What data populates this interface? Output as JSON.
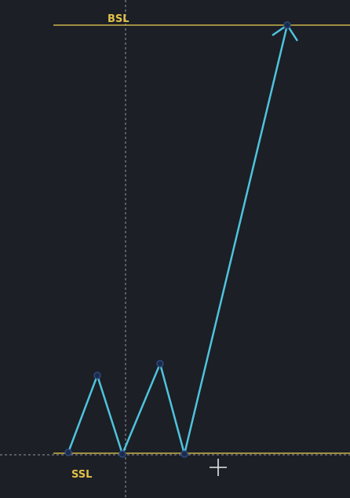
{
  "colors": {
    "background": "#1c1f26",
    "level_line": "#c9b34a",
    "level_text": "#e2c04a",
    "path": "#4fc3dc",
    "point_fill": "#1b2b4d",
    "crosshair": "#bfbfbf"
  },
  "levels": {
    "bsl": {
      "label": "BSL"
    },
    "ssl": {
      "label": "SSL"
    }
  },
  "drawing": {
    "tool": "path-with-arrow",
    "vertices": [
      "low-1",
      "high-1",
      "low-2",
      "high-2",
      "low-3",
      "target-bsl"
    ],
    "arrowhead": true
  },
  "cursor": {
    "icon": "crosshair-plus-icon",
    "vertical_guide": "dashed"
  }
}
